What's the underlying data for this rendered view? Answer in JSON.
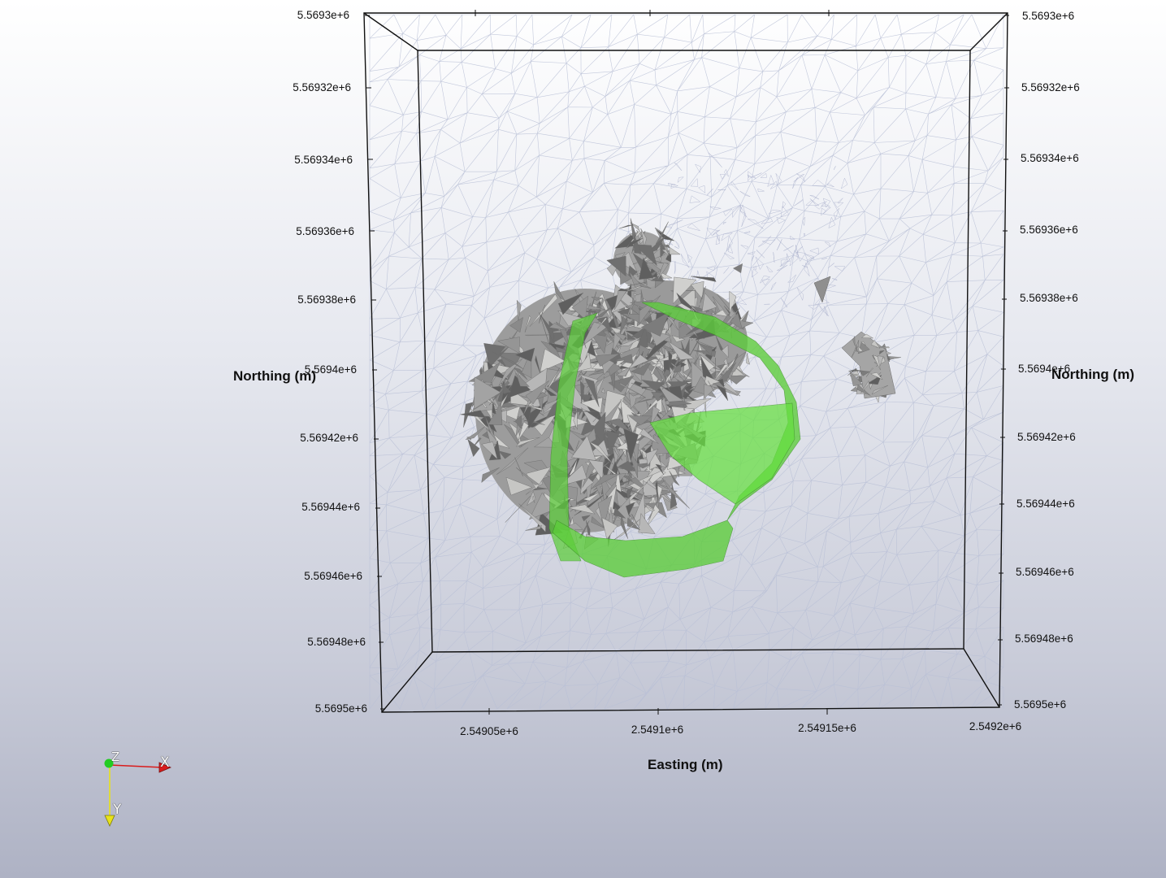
{
  "view": {
    "background_top": "#ffffff",
    "background_bottom": "#aeb2c4",
    "mesh_color": "#b8bfd6",
    "rock_color": "#9b9b9b",
    "surface_color": "#5ccd3a"
  },
  "axes": {
    "northing_title": "Northing (m)",
    "easting_title": "Easting (m)",
    "northing_ticks": [
      "5.5693e+6",
      "5.56932e+6",
      "5.56934e+6",
      "5.56936e+6",
      "5.56938e+6",
      "5.5694e+6",
      "5.56942e+6",
      "5.56944e+6",
      "5.56946e+6",
      "5.56948e+6",
      "5.5695e+6"
    ],
    "easting_ticks": [
      "2.54905e+6",
      "2.5491e+6",
      "2.54915e+6",
      "2.5492e+6"
    ]
  },
  "orientation": {
    "z_label": "Z",
    "x_label": "X",
    "y_label": "Y",
    "x_color": "#d91c1c",
    "y_color": "#e8e21a",
    "z_color": "#22cc22"
  }
}
